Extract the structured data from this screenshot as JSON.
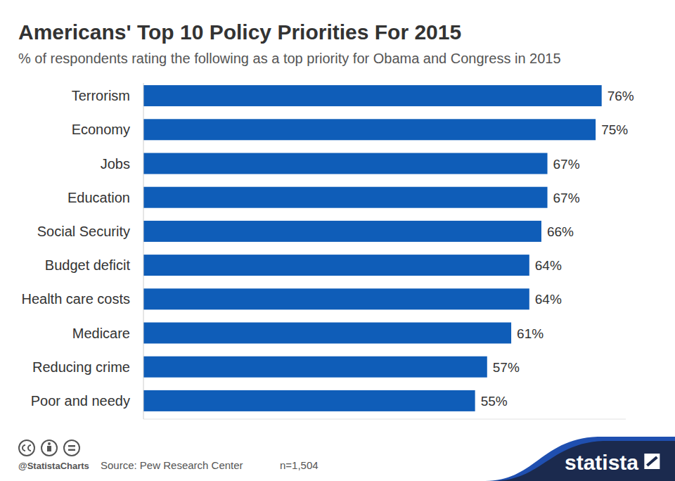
{
  "chart_data": {
    "type": "bar",
    "orientation": "horizontal",
    "title": "Americans' Top 10 Policy Priorities For 2015",
    "subtitle": "% of respondents rating the following as a top priority for Obama and Congress in 2015",
    "categories": [
      "Terrorism",
      "Economy",
      "Jobs",
      "Education",
      "Social Security",
      "Budget deficit",
      "Health care costs",
      "Medicare",
      "Reducing crime",
      "Poor and needy"
    ],
    "values": [
      76,
      75,
      67,
      67,
      66,
      64,
      64,
      61,
      57,
      55
    ],
    "value_labels": [
      "76%",
      "75%",
      "67%",
      "67%",
      "66%",
      "64%",
      "64%",
      "61%",
      "57%",
      "55%"
    ],
    "color": "#0f5db8",
    "xlim": [
      0,
      80
    ],
    "grid": false,
    "data_labels": true,
    "tick_labels": "y",
    "annotations": [
      "@StatistaCharts",
      "Source: Pew Research Center",
      "n=1,504",
      "statista"
    ]
  }
}
